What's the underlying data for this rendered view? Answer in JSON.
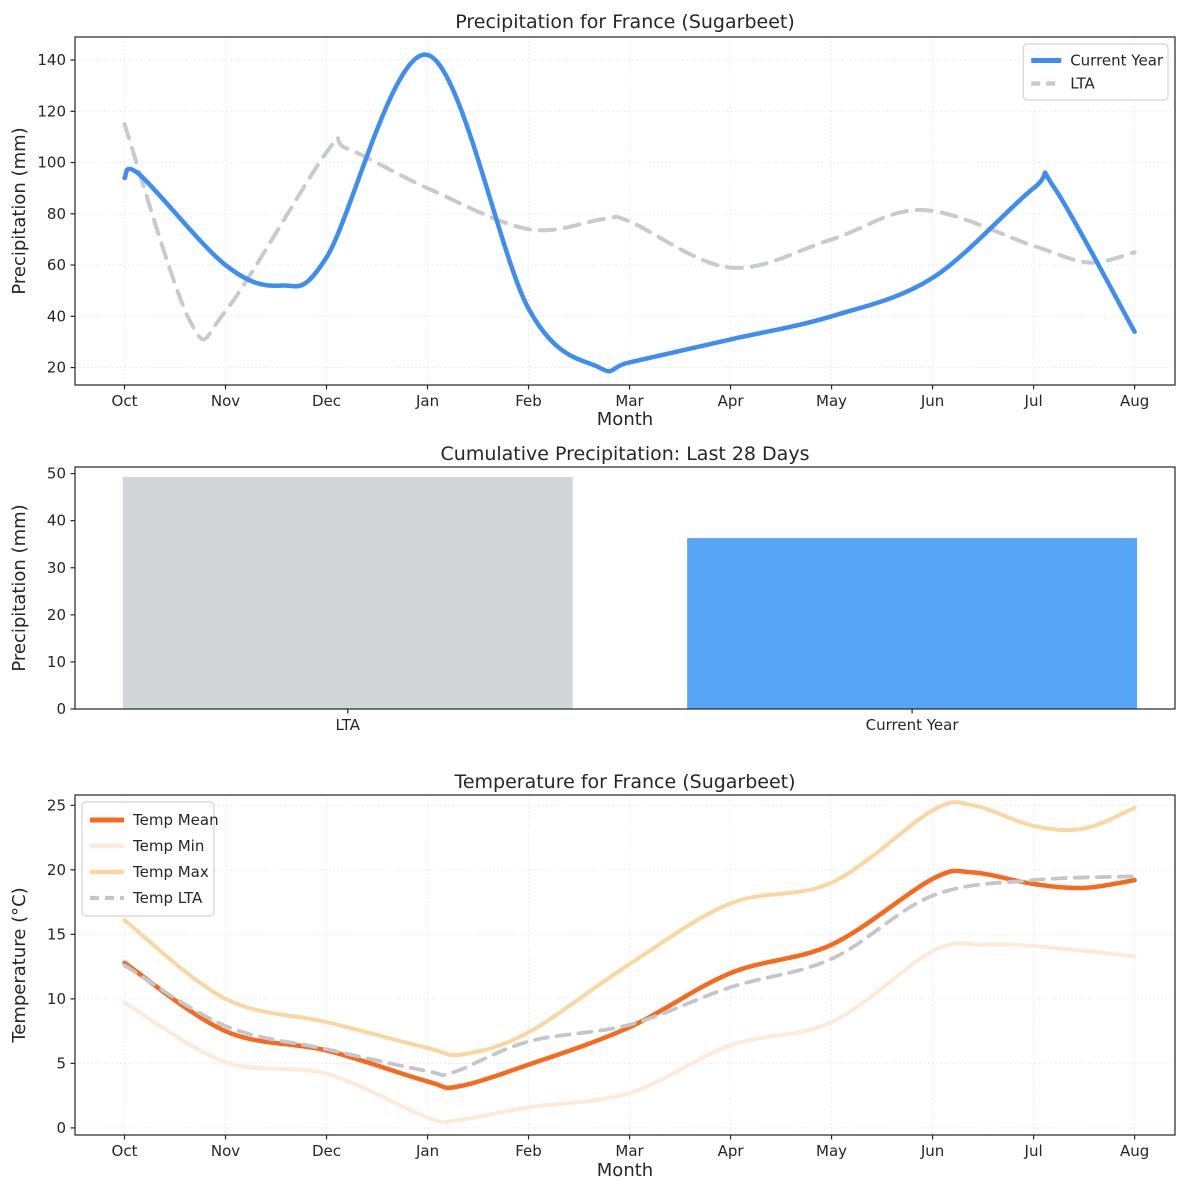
{
  "figure": {
    "background": "#ffffff",
    "text_color": "#262626"
  },
  "months": [
    "Oct",
    "Nov",
    "Dec",
    "Jan",
    "Feb",
    "Mar",
    "Apr",
    "May",
    "Jun",
    "Jul",
    "Aug"
  ],
  "chart_data": [
    {
      "type": "line",
      "title": "Precipitation for France (Sugarbeet)",
      "xlabel": "Month",
      "ylabel": "Precipitation (mm)",
      "x_tick_labels": [
        "Oct",
        "Nov",
        "Dec",
        "Jan",
        "Feb",
        "Mar",
        "Apr",
        "May",
        "Jun",
        "Jul",
        "Aug"
      ],
      "y_ticks": [
        20,
        40,
        60,
        80,
        100,
        120,
        140
      ],
      "xlim": [
        -0.49,
        10.4
      ],
      "ylim": [
        13.2,
        149.0
      ],
      "grid": true,
      "legend": {
        "position": "top-right",
        "items": [
          "Current Year",
          "LTA"
        ]
      },
      "series": [
        {
          "name": "LTA",
          "color": "#c7cbcd",
          "width": 4,
          "dash": "15 10",
          "monthly_values": [
            115,
            42,
            104,
            90,
            74,
            77,
            59,
            70,
            81,
            67,
            65
          ],
          "points": [
            [
              0,
              115
            ],
            [
              0.65,
              38
            ],
            [
              1,
              42
            ],
            [
              2,
              104
            ],
            [
              2.2,
              105.5
            ],
            [
              3,
              90
            ],
            [
              4,
              74
            ],
            [
              4.75,
              78
            ],
            [
              5,
              77
            ],
            [
              6,
              59
            ],
            [
              7,
              70
            ],
            [
              7.9,
              81.5
            ],
            [
              9,
              67.5
            ],
            [
              9.55,
              61
            ],
            [
              10,
              65
            ]
          ]
        },
        {
          "name": "Current Year",
          "color": "#3e8ef2",
          "width": 4.5,
          "dash": null,
          "monthly_values": [
            94,
            60,
            63,
            142,
            43,
            22,
            31,
            40,
            55,
            90,
            34
          ],
          "points": [
            [
              0,
              94
            ],
            [
              0.15,
              95.3
            ],
            [
              1,
              60
            ],
            [
              1.55,
              52
            ],
            [
              2,
              63
            ],
            [
              3,
              142
            ],
            [
              4,
              43
            ],
            [
              4.7,
              20
            ],
            [
              5,
              22
            ],
            [
              6,
              31
            ],
            [
              7,
              40
            ],
            [
              8,
              55
            ],
            [
              9,
              90
            ],
            [
              9.2,
              90.5
            ],
            [
              10,
              34
            ]
          ]
        }
      ]
    },
    {
      "type": "bar",
      "title": "Cumulative Precipitation: Last 28 Days",
      "ylabel": "Precipitation (mm)",
      "categories": [
        "LTA",
        "Current Year"
      ],
      "values": [
        49.3,
        36.3
      ],
      "colors": [
        "#d3d6d8",
        "#57a5f6"
      ],
      "y_ticks": [
        0,
        10,
        20,
        30,
        40,
        50
      ],
      "ylim": [
        0,
        51.4
      ],
      "grid": false,
      "bar_centers_frac": [
        0.248,
        0.761
      ],
      "bar_width_frac": 0.409
    },
    {
      "type": "line",
      "title": "Temperature for France (Sugarbeet)",
      "xlabel": "Month",
      "ylabel": "Temperature (°C)",
      "x_tick_labels": [
        "Oct",
        "Nov",
        "Dec",
        "Jan",
        "Feb",
        "Mar",
        "Apr",
        "May",
        "Jun",
        "Jul",
        "Aug"
      ],
      "y_ticks": [
        0,
        5,
        10,
        15,
        20,
        25
      ],
      "xlim": [
        -0.49,
        10.4
      ],
      "ylim": [
        -0.55,
        25.8
      ],
      "grid": true,
      "legend": {
        "position": "top-left",
        "items": [
          "Temp Mean",
          "Temp Min",
          "Temp Max",
          "Temp LTA"
        ]
      },
      "series": [
        {
          "name": "Temp Mean",
          "color": "#f76a1e",
          "width": 4.5,
          "dash": null,
          "monthly_values": [
            12.8,
            7.5,
            6.0,
            3.6,
            4.9,
            7.8,
            12.0,
            14.2,
            19.3,
            18.9,
            19.2
          ],
          "points": [
            [
              0,
              12.8
            ],
            [
              1,
              7.5
            ],
            [
              2,
              6.0
            ],
            [
              3,
              3.6
            ],
            [
              3.3,
              3.2
            ],
            [
              4,
              4.9
            ],
            [
              5,
              7.8
            ],
            [
              6,
              12.0
            ],
            [
              7,
              14.2
            ],
            [
              8,
              19.3
            ],
            [
              8.4,
              19.8
            ],
            [
              9,
              18.9
            ],
            [
              9.5,
              18.6
            ],
            [
              10,
              19.2
            ]
          ]
        },
        {
          "name": "Temp Min",
          "color": "#fdebd8",
          "width": 4,
          "dash": null,
          "monthly_values": [
            9.7,
            5.1,
            4.2,
            0.8,
            1.6,
            2.7,
            6.4,
            8.2,
            13.7,
            14.1,
            13.3
          ],
          "points": [
            [
              0,
              9.7
            ],
            [
              1,
              5.1
            ],
            [
              2,
              4.2
            ],
            [
              3,
              0.8
            ],
            [
              3.3,
              0.6
            ],
            [
              4,
              1.6
            ],
            [
              5,
              2.7
            ],
            [
              6,
              6.4
            ],
            [
              7,
              8.2
            ],
            [
              8,
              13.7
            ],
            [
              8.5,
              14.2
            ],
            [
              9,
              14.1
            ],
            [
              10,
              13.3
            ]
          ]
        },
        {
          "name": "Temp Max",
          "color": "#fad7a0",
          "width": 4,
          "dash": null,
          "monthly_values": [
            16.1,
            10.0,
            8.2,
            6.2,
            7.4,
            12.7,
            17.4,
            19.0,
            24.6,
            23.4,
            24.8
          ],
          "points": [
            [
              0,
              16.1
            ],
            [
              1,
              10.0
            ],
            [
              2,
              8.2
            ],
            [
              3,
              6.2
            ],
            [
              3.35,
              5.7
            ],
            [
              4,
              7.4
            ],
            [
              5,
              12.7
            ],
            [
              6,
              17.4
            ],
            [
              7,
              19.0
            ],
            [
              8,
              24.6
            ],
            [
              8.4,
              25.0
            ],
            [
              9,
              23.4
            ],
            [
              9.5,
              23.2
            ],
            [
              10,
              24.8
            ]
          ]
        },
        {
          "name": "Temp LTA",
          "color": "#c3c7c9",
          "width": 3.8,
          "dash": "13 9",
          "monthly_values": [
            12.6,
            7.9,
            6.1,
            4.4,
            6.7,
            8.0,
            10.9,
            13.1,
            18.0,
            19.2,
            19.5
          ],
          "points": [
            [
              0,
              12.6
            ],
            [
              1,
              7.9
            ],
            [
              2,
              6.1
            ],
            [
              3,
              4.4
            ],
            [
              3.25,
              4.3
            ],
            [
              4,
              6.7
            ],
            [
              5,
              8.0
            ],
            [
              6,
              10.9
            ],
            [
              7,
              13.1
            ],
            [
              8,
              18.0
            ],
            [
              9,
              19.2
            ],
            [
              10,
              19.5
            ]
          ]
        }
      ]
    }
  ]
}
